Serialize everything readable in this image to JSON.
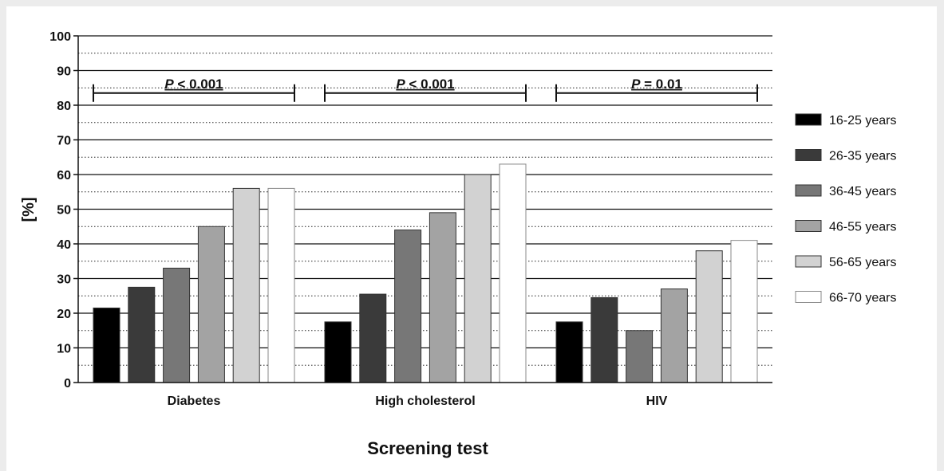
{
  "chart_data": {
    "type": "bar",
    "title": "",
    "xlabel": "Screening test",
    "ylabel": "[%]",
    "ylim": [
      0,
      100
    ],
    "yticks": [
      0,
      10,
      20,
      30,
      40,
      50,
      60,
      70,
      80,
      90,
      100
    ],
    "grid": "solid major lines at every 10, dotted minor lines at every 5",
    "legend_position": "right",
    "categories": [
      "Diabetes",
      "High cholesterol",
      "HIV"
    ],
    "series": [
      {
        "name": "16-25 years",
        "color": "#000000",
        "values": [
          21.5,
          17.5,
          17.5
        ]
      },
      {
        "name": "26-35 years",
        "color": "#3a3a3a",
        "values": [
          27.5,
          25.5,
          24.5
        ]
      },
      {
        "name": "36-45 years",
        "color": "#777777",
        "values": [
          33,
          44,
          15
        ]
      },
      {
        "name": "46-55 years",
        "color": "#a3a3a3",
        "values": [
          45,
          49,
          27
        ]
      },
      {
        "name": "56-65 years",
        "color": "#d2d2d2",
        "values": [
          56,
          60,
          38
        ]
      },
      {
        "name": "66-70 years",
        "color": "#ffffff",
        "values": [
          56,
          63,
          41
        ]
      }
    ],
    "annotations": [
      {
        "category": "Diabetes",
        "italic": "P",
        "rest": " < 0.001",
        "y": 83.5
      },
      {
        "category": "High cholesterol",
        "italic": "P",
        "rest": " < 0.001",
        "y": 83.5
      },
      {
        "category": "HIV",
        "italic": "P",
        "rest": " = 0.01",
        "y": 83.5
      }
    ]
  }
}
